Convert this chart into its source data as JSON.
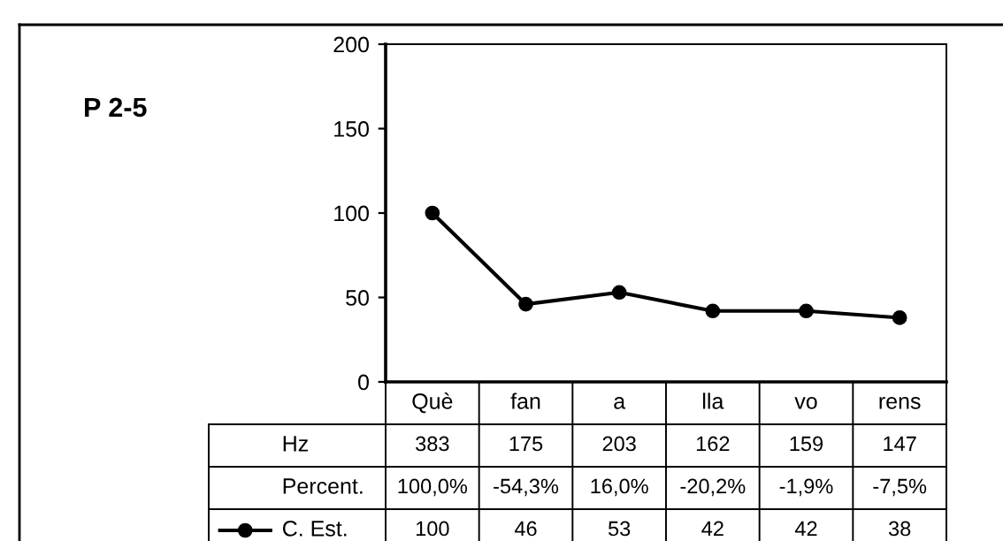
{
  "chart_data": {
    "type": "line",
    "title": "P 2-5",
    "categories": [
      "Què",
      "fan",
      "a",
      "lla",
      "vo",
      "rens"
    ],
    "series": [
      {
        "name": "C. Est.",
        "color": "#000000",
        "values": [
          100,
          46,
          53,
          42,
          42,
          38
        ]
      }
    ],
    "ylim": [
      0,
      200
    ],
    "yticks": [
      0,
      50,
      100,
      150,
      200
    ],
    "grid": false,
    "legend": "bottom",
    "marker": "circle",
    "line_style": "solid",
    "data_labels": true,
    "annotations": [
      "Hz",
      "383",
      "175",
      "203",
      "162",
      "159",
      "147",
      "Percent.",
      "100,0%",
      "-54,3%",
      "16,0%",
      "-20,2%",
      "-1,9%",
      "-7,5%"
    ]
  }
}
